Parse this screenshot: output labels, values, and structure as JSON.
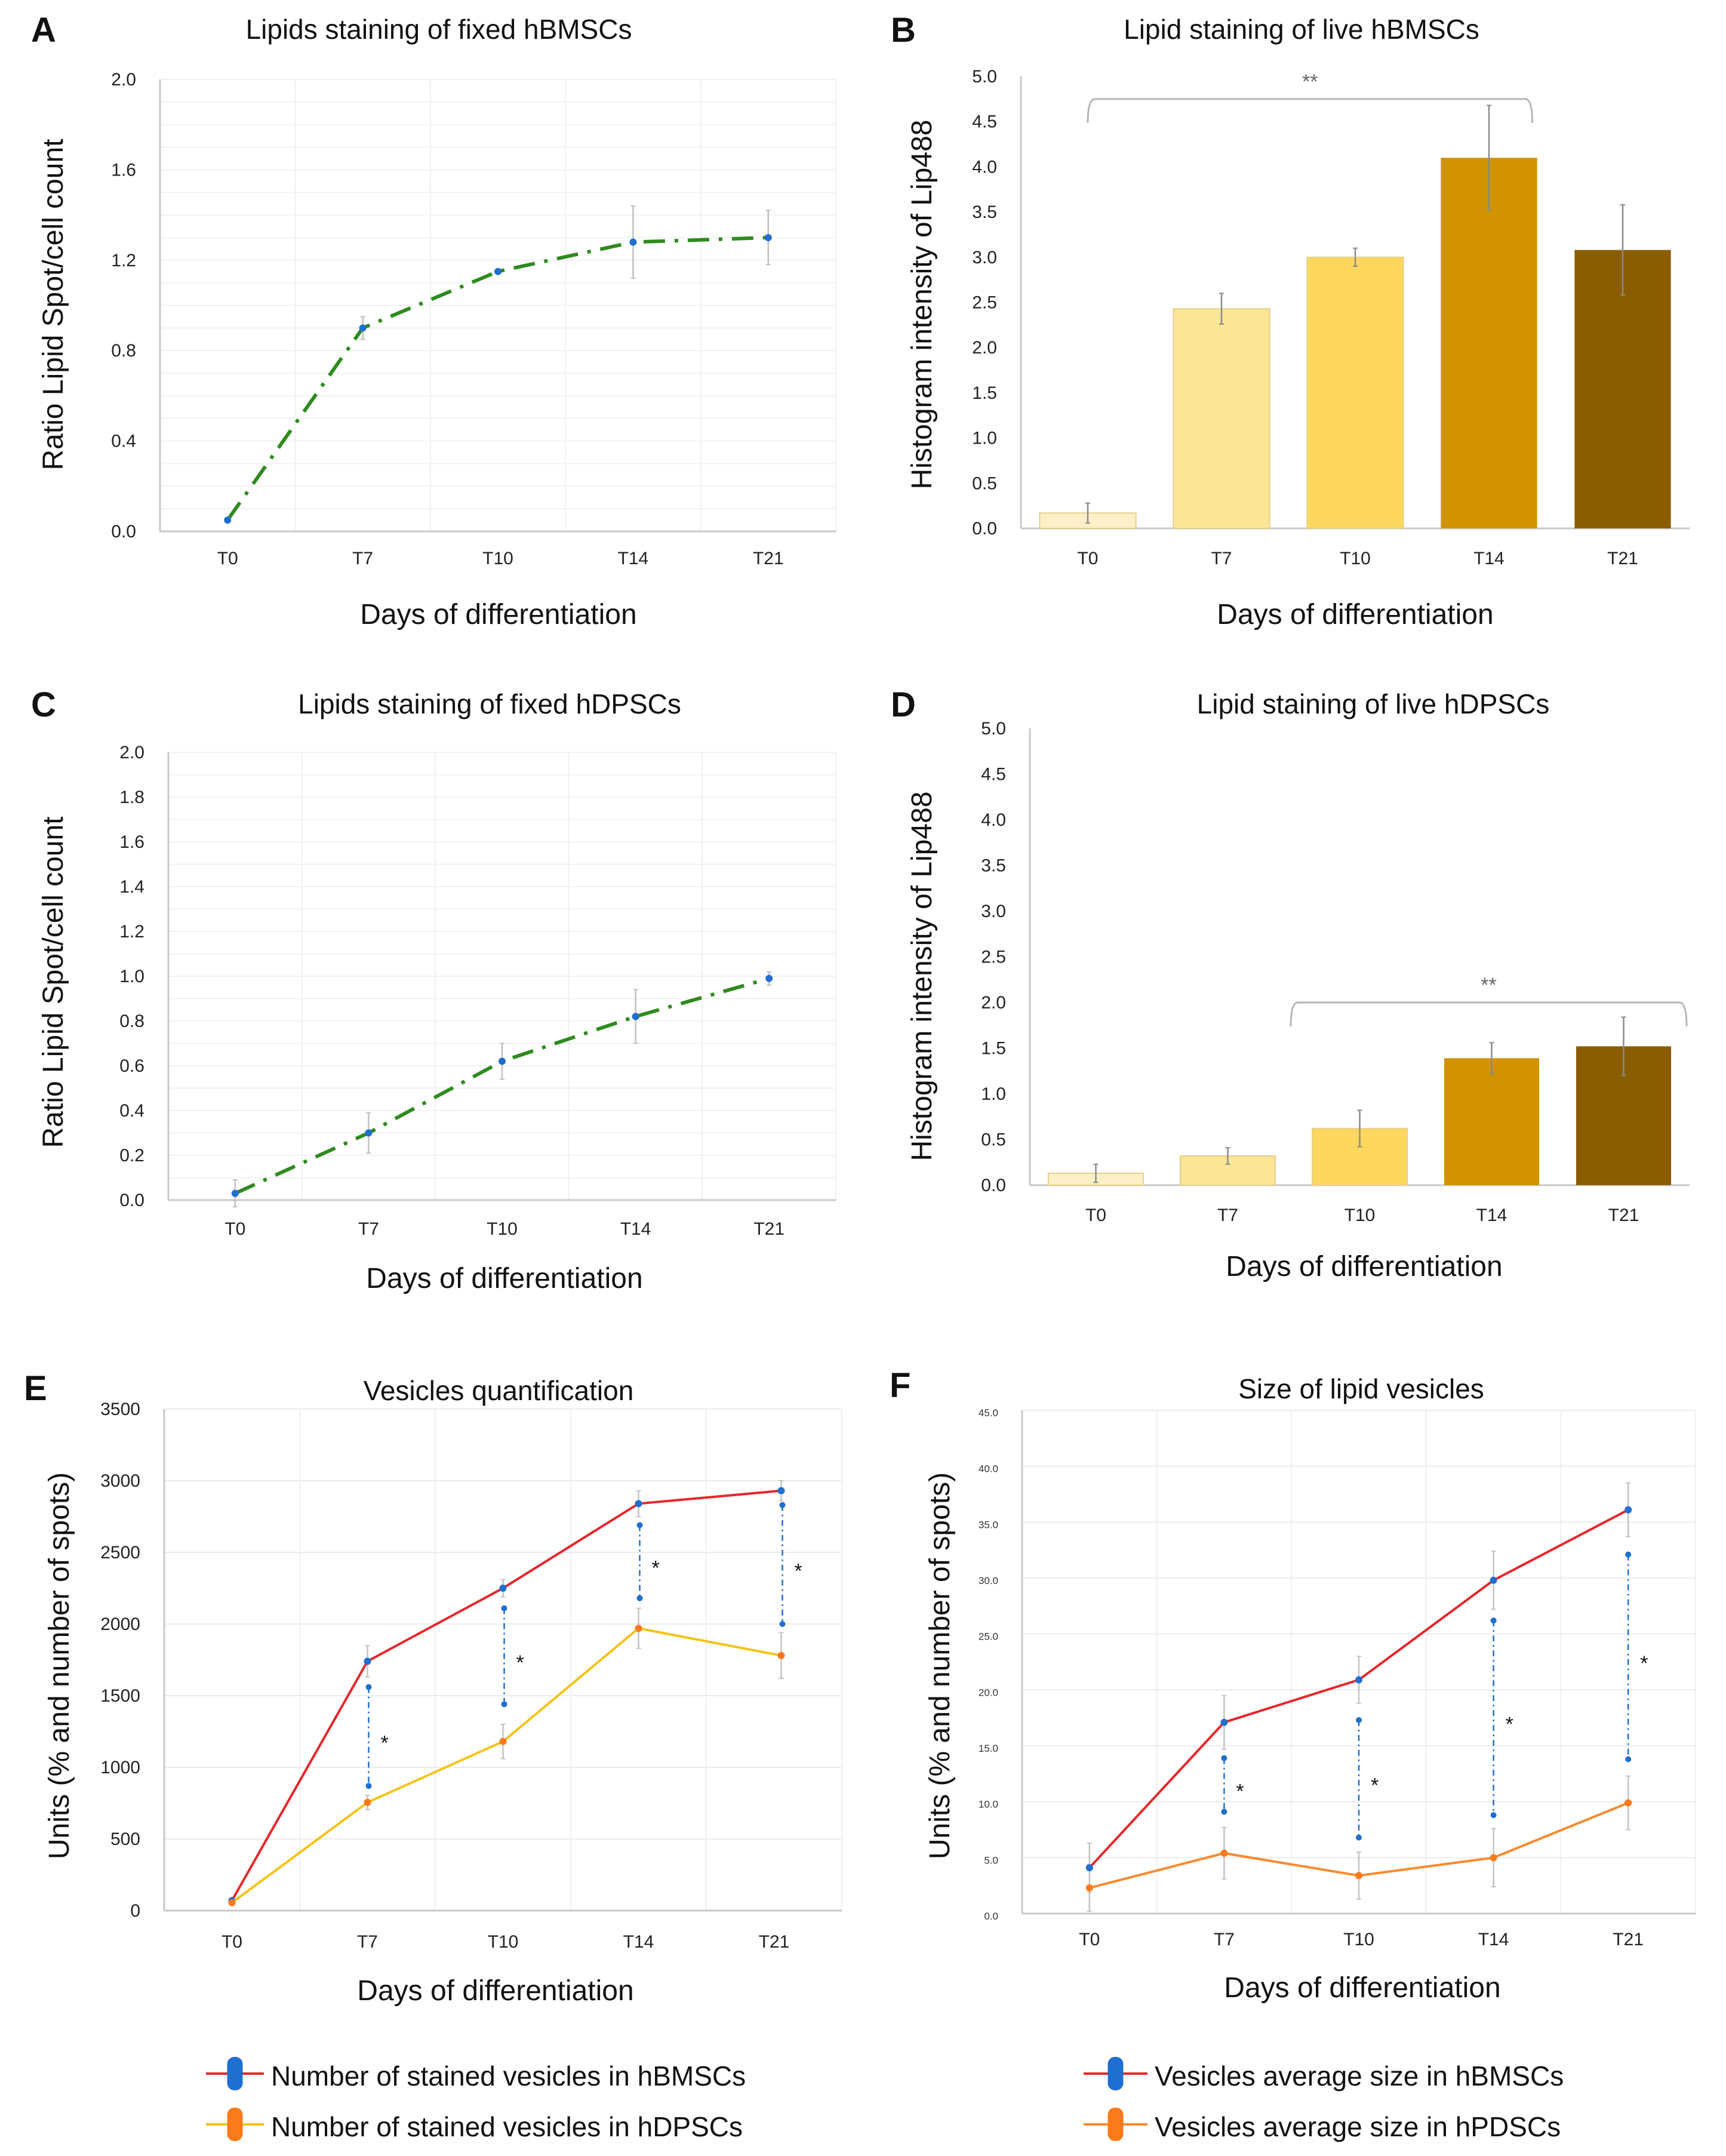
{
  "figure": {
    "panels": [
      "A",
      "B",
      "C",
      "D",
      "E",
      "F"
    ]
  },
  "colors": {
    "green_line": "#2e8b1e",
    "marker_blue": "#1f6fd1",
    "red_line": "#e8262b",
    "yellow_line": "#f5c316",
    "orange_line": "#fb8a2e",
    "orange_marker": "#fb7a1c",
    "error_bar": "#a8a8a8",
    "grid": "#ececec",
    "axis": "#c8c8c8",
    "bracket": "#b5b5b5",
    "bar_T0": "#fdf0c8",
    "bar_T7": "#fde597",
    "bar_T10": "#fdd75e",
    "bar_T14": "#d19302",
    "bar_T21": "#8a5e00"
  },
  "chart_data": [
    {
      "id": "A",
      "type": "line",
      "panel_letter": "A",
      "title": "Lipids staining of fixed hBMSCs",
      "xlabel": "Days of differentiation",
      "ylabel": "Ratio Lipid Spot/cell count",
      "categories": [
        "T0",
        "T7",
        "T10",
        "T14",
        "T21"
      ],
      "ylim": [
        0,
        2.0
      ],
      "yticks": [
        "0.0",
        "0.4",
        "0.8",
        "1.2",
        "1.6",
        "2.0"
      ],
      "ytick_values": [
        0,
        0.4,
        0.8,
        1.2,
        1.6,
        2.0
      ],
      "minor_grid_step": 0.1,
      "grid": true,
      "line_style": "dash-dot",
      "series": [
        {
          "name": "fixed hBMSCs",
          "values": [
            0.05,
            0.9,
            1.15,
            1.28,
            1.3
          ],
          "errors": [
            0.0,
            0.05,
            0.0,
            0.16,
            0.12
          ]
        }
      ]
    },
    {
      "id": "B",
      "type": "bar",
      "panel_letter": "B",
      "title": "Lipid staining of live hBMSCs",
      "xlabel": "Days of differentiation",
      "ylabel": "Histogram intensity of Lip488",
      "categories": [
        "T0",
        "T7",
        "T10",
        "T14",
        "T21"
      ],
      "ylim": [
        0,
        5.0
      ],
      "yticks": [
        "0.0",
        "0.5",
        "1.0",
        "1.5",
        "2.0",
        "2.5",
        "3.0",
        "3.5",
        "4.0",
        "4.5",
        "5.0"
      ],
      "ytick_values": [
        0,
        0.5,
        1.0,
        1.5,
        2.0,
        2.5,
        3.0,
        3.5,
        4.0,
        4.5,
        5.0
      ],
      "grid": false,
      "values": [
        0.17,
        2.43,
        3.0,
        4.1,
        3.08
      ],
      "errors": [
        0.11,
        0.17,
        0.1,
        0.58,
        0.5
      ],
      "significance": {
        "from": "T0",
        "to": "T14",
        "label": "**",
        "level": 4.75
      }
    },
    {
      "id": "C",
      "type": "line",
      "panel_letter": "C",
      "title": "Lipids staining of fixed hDPSCs",
      "xlabel": "Days of differentiation",
      "ylabel": "Ratio Lipid Spot/cell count",
      "categories": [
        "T0",
        "T7",
        "T10",
        "T14",
        "T21"
      ],
      "ylim": [
        0,
        2.0
      ],
      "yticks": [
        "0.0",
        "0.2",
        "0.4",
        "0.6",
        "0.8",
        "1.0",
        "1.2",
        "1.4",
        "1.6",
        "1.8",
        "2.0"
      ],
      "ytick_values": [
        0,
        0.2,
        0.4,
        0.6,
        0.8,
        1.0,
        1.2,
        1.4,
        1.6,
        1.8,
        2.0
      ],
      "minor_grid_step": 0.1,
      "grid": true,
      "line_style": "dash-dot",
      "series": [
        {
          "name": "fixed hDPSCs",
          "values": [
            0.03,
            0.3,
            0.62,
            0.82,
            0.99
          ],
          "errors": [
            0.06,
            0.09,
            0.08,
            0.12,
            0.03
          ]
        }
      ]
    },
    {
      "id": "D",
      "type": "bar",
      "panel_letter": "D",
      "title": "Lipid staining of live hDPSCs",
      "xlabel": "Days of differentiation",
      "ylabel": "Histogram intensity of Lip488",
      "categories": [
        "T0",
        "T7",
        "T10",
        "T14",
        "T21"
      ],
      "ylim": [
        0,
        5.0
      ],
      "yticks": [
        "0.0",
        "0.5",
        "1.0",
        "1.5",
        "2.0",
        "2.5",
        "3.0",
        "3.5",
        "4.0",
        "4.5",
        "5.0"
      ],
      "ytick_values": [
        0,
        0.5,
        1.0,
        1.5,
        2.0,
        2.5,
        3.0,
        3.5,
        4.0,
        4.5,
        5.0
      ],
      "grid": false,
      "values": [
        0.13,
        0.32,
        0.62,
        1.39,
        1.52
      ],
      "errors": [
        0.1,
        0.09,
        0.2,
        0.17,
        0.32
      ],
      "significance": {
        "from": "T10",
        "to": "T21",
        "label": "**",
        "level": 2.0
      }
    },
    {
      "id": "E",
      "type": "line",
      "panel_letter": "E",
      "title": "Vesicles quantification",
      "xlabel": "Days of differentiation",
      "ylabel": "Units (% and number of spots)",
      "categories": [
        "T0",
        "T7",
        "T10",
        "T14",
        "T21"
      ],
      "ylim": [
        0,
        3500
      ],
      "yticks": [
        "0",
        "500",
        "1000",
        "1500",
        "2000",
        "2500",
        "3000",
        "3500"
      ],
      "ytick_values": [
        0,
        500,
        1000,
        1500,
        2000,
        2500,
        3000,
        3500
      ],
      "grid": true,
      "series": [
        {
          "name": "Number of stained vesicles in hBMSCs",
          "line_color": "#e8262b",
          "marker_color": "#1f6fd1",
          "values": [
            70,
            1740,
            2250,
            2840,
            2930
          ],
          "errors": [
            0,
            110,
            60,
            90,
            70
          ]
        },
        {
          "name": "Number of stained vesicles in hDPSCs",
          "line_color": "#f5c316",
          "marker_color": "#fb7a1c",
          "values": [
            55,
            755,
            1180,
            1970,
            1780
          ],
          "errors": [
            0,
            50,
            120,
            140,
            160
          ]
        }
      ],
      "significance": [
        {
          "category": "T7",
          "low": 870,
          "high": 1560,
          "label": "*"
        },
        {
          "category": "T10",
          "low": 1440,
          "high": 2110,
          "label": "*"
        },
        {
          "category": "T14",
          "low": 2180,
          "high": 2690,
          "label": "*"
        },
        {
          "category": "T21",
          "low": 2000,
          "high": 2830,
          "label": "*"
        }
      ],
      "legend_position": "bottom"
    },
    {
      "id": "F",
      "type": "line",
      "panel_letter": "F",
      "title": "Size of lipid vesicles",
      "xlabel": "Days of differentiation",
      "ylabel": "Units (% and number of spots)",
      "categories": [
        "T0",
        "T7",
        "T10",
        "T14",
        "T21"
      ],
      "ylim": [
        0,
        45
      ],
      "yticks": [
        "0.0",
        "5.0",
        "10.0",
        "15.0",
        "20.0",
        "25.0",
        "30.0",
        "35.0",
        "40.0",
        "45.0"
      ],
      "ytick_values": [
        0,
        5,
        10,
        15,
        20,
        25,
        30,
        35,
        40,
        45
      ],
      "grid": true,
      "series": [
        {
          "name": "Vesicles average size in hBMSCs",
          "line_color": "#e8262b",
          "marker_color": "#1f6fd1",
          "values": [
            4.1,
            17.1,
            20.9,
            29.8,
            36.1
          ],
          "errors": [
            2.2,
            2.4,
            2.1,
            2.6,
            2.4
          ]
        },
        {
          "name": "Vesicles average size in hPDSCs",
          "line_color": "#fb8a2e",
          "marker_color": "#fb7a1c",
          "values": [
            2.3,
            5.4,
            3.4,
            5.0,
            9.9
          ],
          "errors": [
            2.1,
            2.3,
            2.1,
            2.6,
            2.4
          ]
        }
      ],
      "significance": [
        {
          "category": "T7",
          "low": 9.1,
          "high": 13.9,
          "label": "*"
        },
        {
          "category": "T10",
          "low": 6.8,
          "high": 17.3,
          "label": "*"
        },
        {
          "category": "T14",
          "low": 8.8,
          "high": 26.2,
          "label": "*"
        },
        {
          "category": "T21",
          "low": 13.8,
          "high": 32.1,
          "label": "*"
        }
      ],
      "legend_position": "bottom"
    }
  ]
}
